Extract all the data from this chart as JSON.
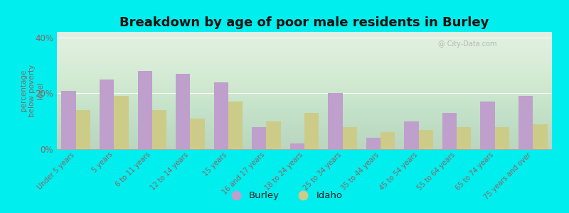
{
  "categories": [
    "Under 5 years",
    "5 years",
    "6 to 11 years",
    "12 to 14 years",
    "15 years",
    "16 and 17 years",
    "18 to 24 years",
    "25 to 34 years",
    "35 to 44 years",
    "45 to 54 years",
    "55 to 64 years",
    "65 to 74 years",
    "75 years and over"
  ],
  "burley": [
    21,
    25,
    28,
    27,
    24,
    8,
    2,
    20,
    4,
    10,
    13,
    17,
    19
  ],
  "idaho": [
    14,
    19,
    14,
    11,
    17,
    10,
    13,
    8,
    6,
    7,
    8,
    8,
    9
  ],
  "burley_color": "#bf9fcc",
  "idaho_color": "#cccc88",
  "background_color": "#00eeee",
  "title": "Breakdown by age of poor male residents in Burley",
  "ylabel": "percentage\nbelow poverty\nlevel",
  "ylim": [
    0,
    42
  ],
  "yticks": [
    0,
    20,
    40
  ],
  "ytick_labels": [
    "0%",
    "20%",
    "40%"
  ],
  "legend_labels": [
    "Burley",
    "Idaho"
  ],
  "title_fontsize": 13,
  "axis_label_color": "#886666",
  "tick_label_color": "#886666",
  "watermark": "@ City-Data.com"
}
